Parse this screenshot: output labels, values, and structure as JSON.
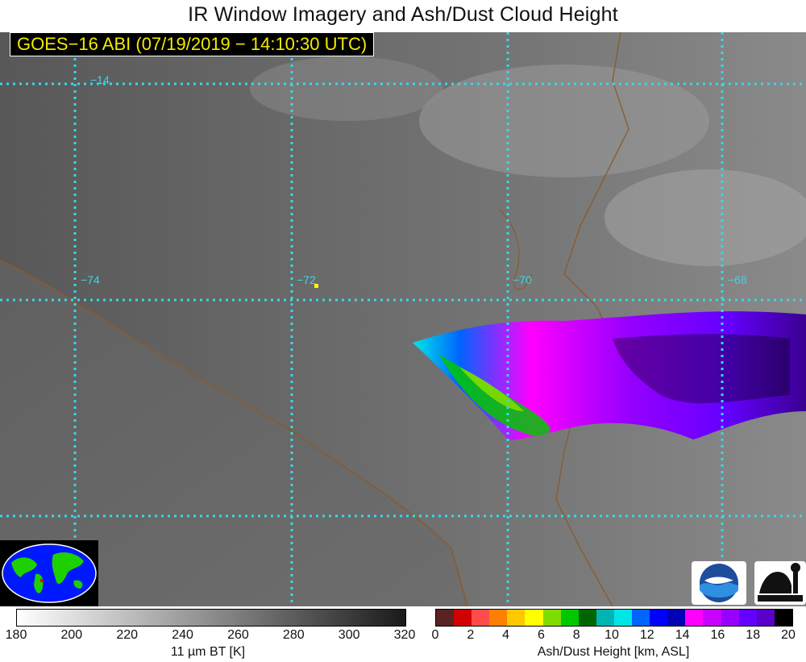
{
  "title": "IR Window Imagery and Ash/Dust Cloud Height",
  "info_box": "GOES−16 ABI (07/19/2019 − 14:10:30 UTC)",
  "map": {
    "latitude_labels": [
      "−14"
    ],
    "longitude_labels": [
      "−74",
      "−72",
      "−70",
      "−68"
    ],
    "gridline_color": "#39d7e8",
    "border_color": "#8b5a2b"
  },
  "brightness_temp_colorbar": {
    "label": "11 µm BT [K]",
    "ticks": [
      "180",
      "200",
      "220",
      "240",
      "260",
      "280",
      "300",
      "320"
    ],
    "colors": [
      "#ffffff",
      "#1a1a1a"
    ]
  },
  "ash_height_colorbar": {
    "label": "Ash/Dust Height [km, ASL]",
    "ticks": [
      "0",
      "2",
      "4",
      "6",
      "8",
      "10",
      "12",
      "14",
      "16",
      "18",
      "20"
    ],
    "colors": [
      "#5a2323",
      "#d20000",
      "#ff4b4b",
      "#ff7f00",
      "#ffc800",
      "#ffff00",
      "#7fdc00",
      "#00c800",
      "#006400",
      "#00b4b4",
      "#00e6e6",
      "#0064ff",
      "#0000ff",
      "#0000b4",
      "#ff00ff",
      "#c800ff",
      "#9600ff",
      "#6400ff",
      "#5a00c8",
      "#000000"
    ]
  },
  "logos": {
    "noaa": "NOAA",
    "cimss": "CIMSS"
  }
}
